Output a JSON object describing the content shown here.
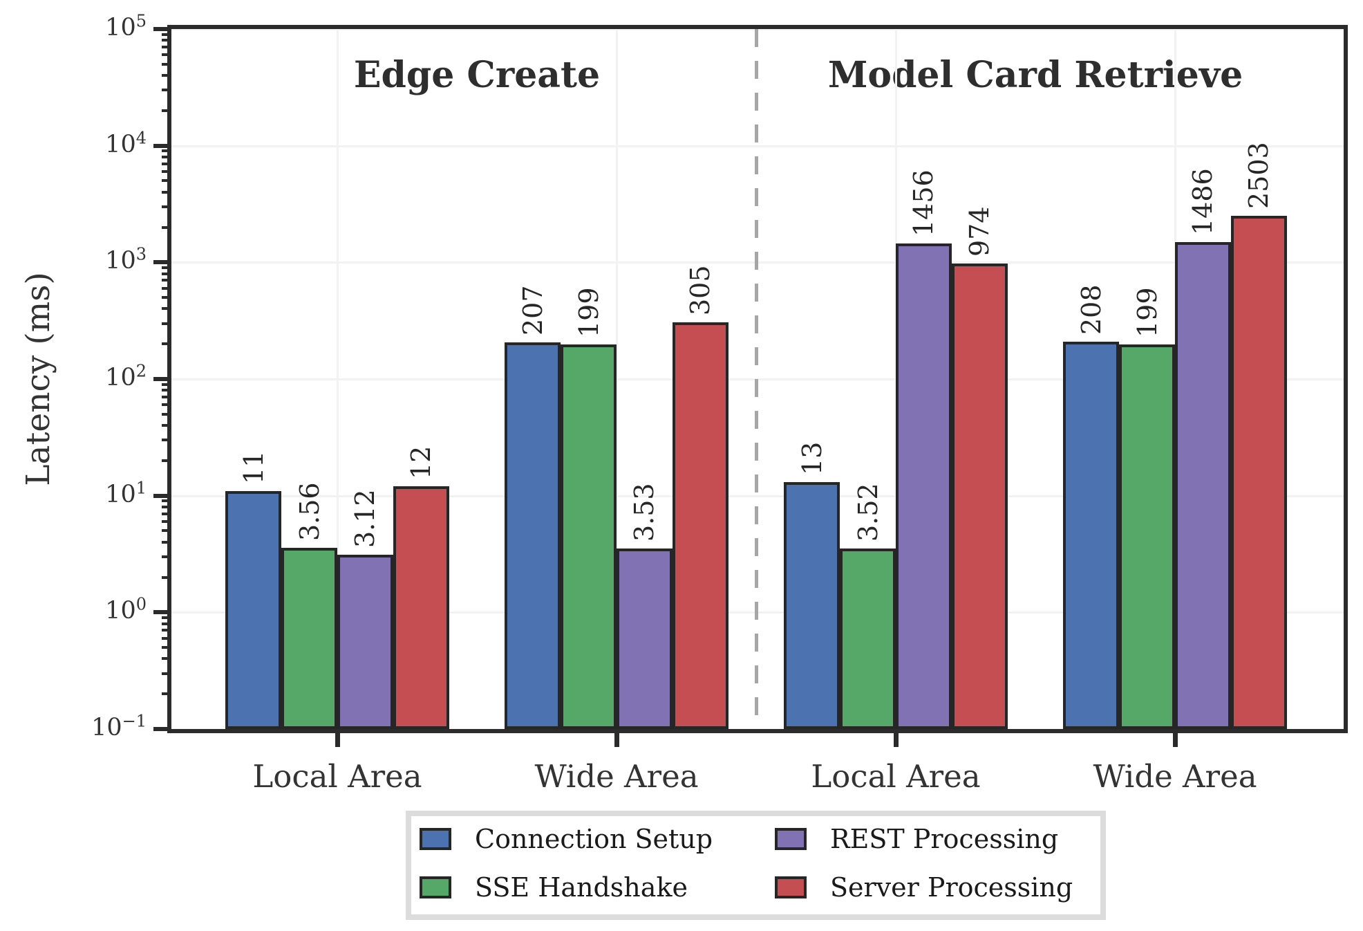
{
  "chart_data": {
    "type": "bar",
    "yscale": "log",
    "ylabel": "Latency (ms)",
    "ylim": [
      0.1,
      100000
    ],
    "y_tick_exponents": [
      "5",
      "4",
      "3",
      "2",
      "1",
      "0",
      "−1"
    ],
    "sections": [
      {
        "title": "Edge Create",
        "groups": [
          "Local Area",
          "Wide Area"
        ]
      },
      {
        "title": "Model Card Retrieve",
        "groups": [
          "Local Area",
          "Wide Area"
        ]
      }
    ],
    "categories": [
      "Local Area",
      "Wide Area",
      "Local Area",
      "Wide Area"
    ],
    "series": [
      {
        "name": "Connection Setup",
        "color": "#4c72b0",
        "values": [
          11,
          207,
          13,
          208
        ],
        "labels": [
          "11",
          "207",
          "13",
          "208"
        ]
      },
      {
        "name": "SSE Handshake",
        "color": "#55a868",
        "values": [
          3.56,
          199,
          3.52,
          199
        ],
        "labels": [
          "3.56",
          "199",
          "3.52",
          "199"
        ]
      },
      {
        "name": "REST Processing",
        "color": "#8172b3",
        "values": [
          3.12,
          3.53,
          1456,
          1486
        ],
        "labels": [
          "3.12",
          "3.53",
          "1456",
          "1486"
        ]
      },
      {
        "name": "Server Processing",
        "color": "#c44e52",
        "values": [
          12,
          305,
          974,
          2503
        ],
        "labels": [
          "12",
          "305",
          "974",
          "2503"
        ]
      }
    ],
    "grid": true,
    "legend_position": "bottom-center",
    "divider_between_sections": true
  },
  "styles": {
    "bar_edge_color": "#262626",
    "grid_color": "#f2f2f2",
    "divider_color": "#a6a6a6",
    "legend_border_color": "#dcdcdc",
    "text_color": "#262626"
  }
}
